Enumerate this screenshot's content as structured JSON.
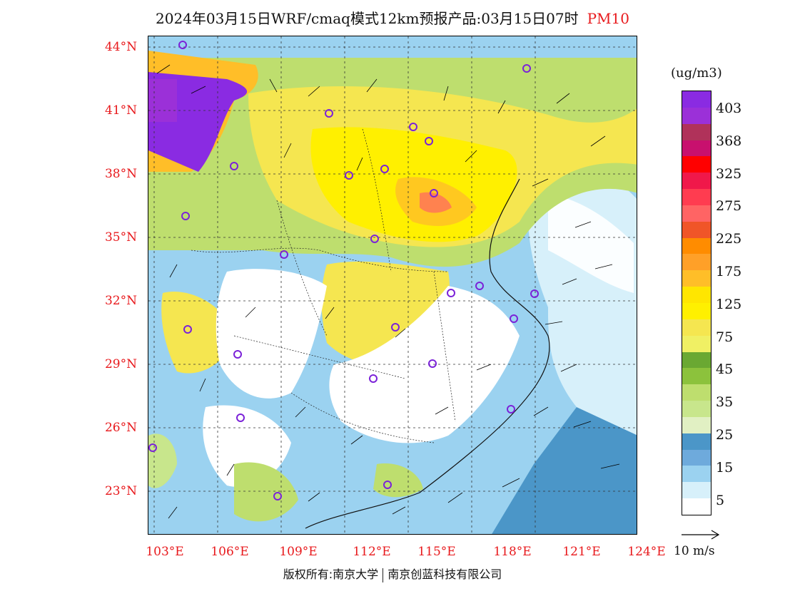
{
  "title": {
    "main": "2024年03月15日WRF/cmaq模式12km预报产品:03月15日07时",
    "pollutant": "PM10"
  },
  "map": {
    "lat_labels": [
      "44°N",
      "41°N",
      "38°N",
      "35°N",
      "32°N",
      "29°N",
      "26°N",
      "23°N"
    ],
    "lon_labels": [
      "103°E",
      "106°E",
      "109°E",
      "112°E",
      "115°E",
      "118°E",
      "121°E",
      "124°E"
    ]
  },
  "legend": {
    "unit": "(ug/m3)",
    "colors": [
      "#8a2be2",
      "#9b30d8",
      "#b0325a",
      "#c8106e",
      "#ff0000",
      "#f0184a",
      "#ff3c50",
      "#ff6464",
      "#f05528",
      "#ff8c00",
      "#ffa028",
      "#ffbe28",
      "#ffe600",
      "#fff000",
      "#f5e650",
      "#f0f064",
      "#6aa832",
      "#8cc23c",
      "#bede6e",
      "#c8e68c",
      "#e1f0c3",
      "#4b96c8",
      "#6eaadc",
      "#9bd2f0",
      "#d7f0fa",
      "#ffffff"
    ],
    "labels": [
      "403",
      "368",
      "325",
      "275",
      "225",
      "175",
      "125",
      "75",
      "45",
      "35",
      "25",
      "15",
      "5"
    ]
  },
  "wind_reference": {
    "label": "10 m/s"
  },
  "copyright": {
    "left": "版权所有:南京大学",
    "right": "南京创蓝科技有限公司"
  }
}
